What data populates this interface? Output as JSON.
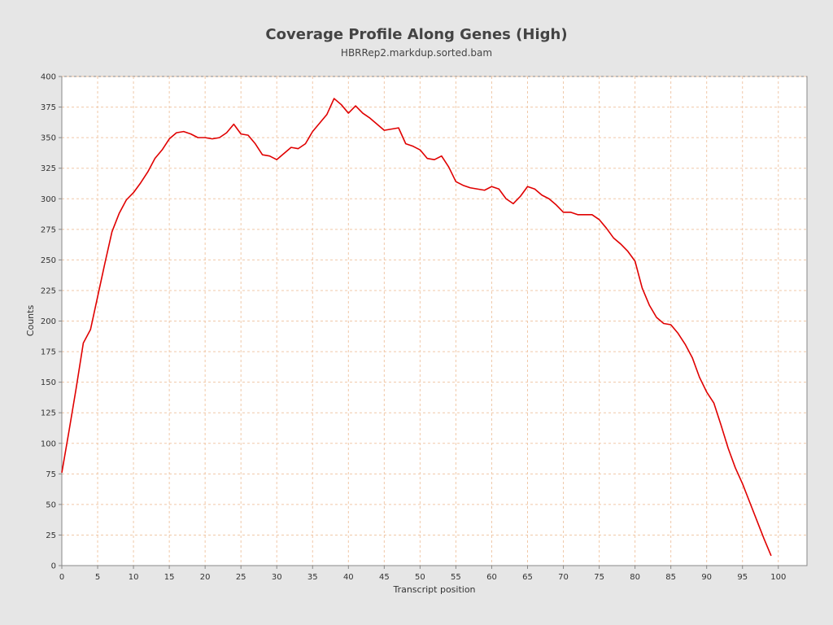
{
  "chart_data": {
    "type": "line",
    "title": "Coverage Profile Along Genes (High)",
    "subtitle": "HBRRep2.markdup.sorted.bam",
    "xlabel": "Transcript position",
    "ylabel": "Counts",
    "xlim": [
      0,
      104
    ],
    "ylim": [
      0,
      400
    ],
    "xticks": [
      0,
      5,
      10,
      15,
      20,
      25,
      30,
      35,
      40,
      45,
      50,
      55,
      60,
      65,
      70,
      75,
      80,
      85,
      90,
      95,
      100
    ],
    "yticks": [
      0,
      25,
      50,
      75,
      100,
      125,
      150,
      175,
      200,
      225,
      250,
      275,
      300,
      325,
      350,
      375,
      400
    ],
    "grid": true,
    "legend": "none",
    "colors": {
      "line": "#e00000",
      "grid": "#f0c8a8",
      "plot_bg": "#ffffff",
      "page_bg": "#e6e6e6"
    },
    "series": [
      {
        "x": [
          0,
          1,
          2,
          3,
          4,
          5,
          6,
          7,
          8,
          9,
          10,
          11,
          12,
          13,
          14,
          15,
          16,
          17,
          18,
          19,
          20,
          21,
          22,
          23,
          24,
          25,
          26,
          27,
          28,
          29,
          30,
          31,
          32,
          33,
          34,
          35,
          36,
          37,
          38,
          39,
          40,
          41,
          42,
          43,
          44,
          45,
          46,
          47,
          48,
          49,
          50,
          51,
          52,
          53,
          54,
          55,
          56,
          57,
          58,
          59,
          60,
          61,
          62,
          63,
          64,
          65,
          66,
          67,
          68,
          69,
          70,
          71,
          72,
          73,
          74,
          75,
          76,
          77,
          78,
          79,
          80,
          81,
          82,
          83,
          84,
          85,
          86,
          87,
          88,
          89,
          90,
          91,
          92,
          93,
          94,
          95,
          96,
          97,
          98,
          99
        ],
        "values": [
          76,
          110,
          145,
          182,
          193,
          220,
          247,
          273,
          288,
          299,
          305,
          313,
          322,
          333,
          340,
          349,
          354,
          355,
          353,
          350,
          350,
          349,
          350,
          354,
          361,
          353,
          352,
          345,
          336,
          335,
          332,
          337,
          342,
          341,
          345,
          355,
          362,
          369,
          382,
          377,
          370,
          376,
          370,
          366,
          361,
          356,
          357,
          358,
          345,
          343,
          340,
          333,
          332,
          335,
          326,
          314,
          311,
          309,
          308,
          307,
          310,
          308,
          300,
          296,
          302,
          310,
          308,
          303,
          300,
          295,
          289,
          289,
          287,
          287,
          287,
          283,
          276,
          268,
          263,
          257,
          249,
          227,
          213,
          203,
          198,
          197,
          190,
          181,
          170,
          154,
          142,
          133,
          115,
          96,
          80,
          67,
          52,
          37,
          22,
          8
        ]
      }
    ]
  }
}
